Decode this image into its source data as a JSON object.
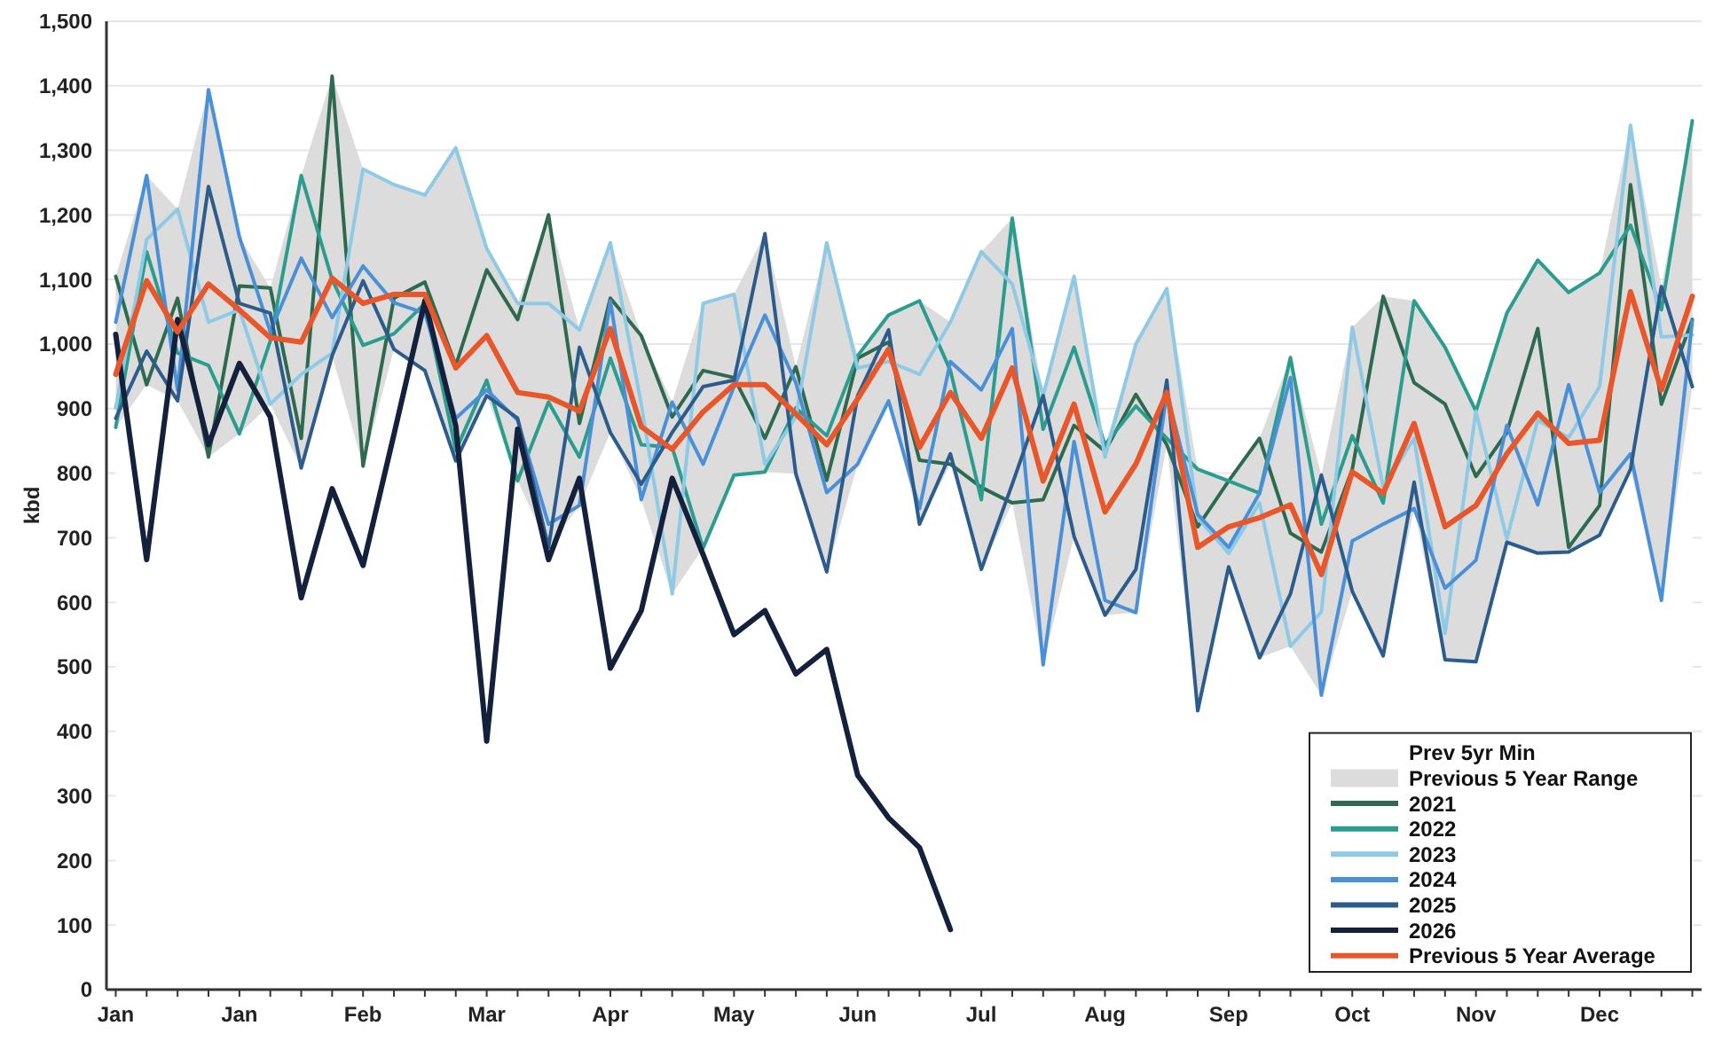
{
  "chart_data": {
    "type": "line",
    "ylabel": "kbd",
    "categories": [
      "Jan",
      null,
      null,
      null,
      "Jan",
      null,
      null,
      null,
      "Feb",
      null,
      null,
      null,
      "Mar",
      null,
      null,
      null,
      "Apr",
      null,
      null,
      null,
      "May",
      null,
      null,
      null,
      "Jun",
      null,
      null,
      null,
      "Jul",
      null,
      null,
      null,
      "Aug",
      null,
      null,
      null,
      "Sep",
      null,
      null,
      null,
      "Oct",
      null,
      null,
      null,
      "Nov",
      null,
      null,
      null,
      "Dec",
      null,
      null,
      null
    ],
    "ylim": [
      0,
      1500
    ],
    "yticks": [
      0,
      {
        "value": 100,
        "label": "100"
      },
      200,
      300,
      400,
      500,
      600,
      700,
      800,
      900,
      {
        "value": 1000,
        "label": "1,000"
      },
      {
        "value": 1100,
        "label": "1,100"
      },
      {
        "value": 1200,
        "label": "1,200"
      },
      {
        "value": 1300,
        "label": "1,300"
      },
      {
        "value": 1400,
        "label": "1,400"
      },
      {
        "value": 1500,
        "label": "1,500"
      }
    ],
    "grid": "y",
    "stacked": true,
    "legend": "bottom right",
    "marker": "none",
    "line_style": "solid",
    "series": [
      {
        "name": "Prev 5yr Min",
        "type": "area",
        "color": "#ffffff",
        "values": [
          871,
          937,
          912,
          825,
          861,
          907,
          808,
          982,
          811,
          992,
          959,
          819,
          920,
          788,
          685,
          750,
          863,
          759,
          613,
          684,
          797,
          802,
          799,
          647,
          814,
          912,
          721,
          814,
          651,
          754,
          503,
          702,
          580,
          584,
          844,
          432,
          655,
          514,
          532,
          456,
          617,
          517,
          745,
          511,
          508,
          693,
          676,
          678,
          704,
          806,
          603,
          934
        ]
      },
      {
        "name": "Previous 5 Year Range",
        "type": "area",
        "color": "#dcdcdc",
        "values": [
          234,
          324,
          297,
          569,
          305,
          180,
          453,
          433,
          460,
          255,
          272,
          485,
          228,
          275,
          515,
          272,
          294,
          254,
          297,
          379,
          280,
          369,
          166,
          510,
          168,
          133,
          346,
          220,
          492,
          441,
          417,
          403,
          264,
          416,
          242,
          374,
          133,
          340,
          447,
          341,
          409,
          557,
          322,
          484,
          388,
          355,
          454,
          402,
          406,
          533,
          486,
          412
        ]
      },
      {
        "name": "2021",
        "color": "#2d6a4f",
        "values": [
          1105,
          937,
          1071,
          825,
          1090,
          1087,
          854,
          1415,
          811,
          1071,
          1096,
          967,
          1115,
          1038,
          1200,
          877,
          1071,
          1013,
          887,
          959,
          948,
          854,
          965,
          789,
          978,
          1003,
          820,
          814,
          778,
          754,
          759,
          874,
          834,
          922,
          844,
          717,
          788,
          854,
          707,
          678,
          806,
          1074,
          940,
          907,
          795,
          863,
          1024,
          685,
          750,
          1247,
          907,
          1038
        ]
      },
      {
        "name": "2022",
        "color": "#2a9d8f",
        "values": [
          871,
          1143,
          986,
          967,
          861,
          1005,
          1261,
          1100,
          998,
          1016,
          1063,
          835,
          944,
          788,
          910,
          825,
          978,
          844,
          840,
          684,
          797,
          802,
          901,
          858,
          982,
          1045,
          1067,
          959,
          759,
          1195,
          868,
          995,
          844,
          904,
          854,
          806,
          788,
          769,
          979,
          721,
          858,
          754,
          1067,
          995,
          896,
          1048,
          1130,
          1080,
          1110,
          1184,
          1053,
          1346
        ]
      },
      {
        "name": "2023",
        "color": "#8ecae6",
        "values": [
          901,
          1162,
          1209,
          1034,
          1053,
          907,
          953,
          986,
          1271,
          1247,
          1231,
          1304,
          1148,
          1063,
          1063,
          1022,
          1157,
          907,
          613,
          1063,
          1077,
          814,
          887,
          1157,
          963,
          973,
          953,
          1034,
          1143,
          1093,
          920,
          1105,
          825,
          1000,
          1086,
          731,
          676,
          754,
          532,
          585,
          1026,
          778,
          854,
          552,
          896,
          698,
          882,
          855,
          934,
          1339,
          1011,
          1014
        ]
      },
      {
        "name": "2024",
        "color": "#4a90d9",
        "values": [
          1034,
          1261,
          929,
          1394,
          1166,
          1019,
          1133,
          1041,
          1121,
          1064,
          1048,
          885,
          929,
          882,
          721,
          750,
          1067,
          759,
          910,
          814,
          934,
          1045,
          940,
          770,
          814,
          912,
          745,
          973,
          929,
          1024,
          503,
          849,
          603,
          584,
          925,
          736,
          685,
          769,
          948,
          456,
          695,
          721,
          745,
          622,
          665,
          874,
          751,
          937,
          770,
          830,
          603,
          1036
        ]
      },
      {
        "name": "2025",
        "color": "#2c5c8c",
        "values": [
          885,
          989,
          912,
          1244,
          1063,
          1048,
          808,
          982,
          1098,
          992,
          959,
          819,
          920,
          885,
          685,
          995,
          863,
          783,
          863,
          934,
          944,
          1171,
          799,
          647,
          920,
          1022,
          721,
          830,
          651,
          783,
          920,
          702,
          580,
          651,
          944,
          432,
          655,
          514,
          613,
          797,
          617,
          517,
          786,
          511,
          508,
          693,
          676,
          678,
          704,
          806,
          1089,
          934
        ]
      },
      {
        "name": "2026",
        "color": "#14213d",
        "values": [
          1015,
          666,
          1038,
          844,
          970,
          887,
          607,
          776,
          657,
          860,
          1067,
          873,
          385,
          868,
          666,
          792,
          498,
          587,
          792,
          674,
          550,
          587,
          489,
          527,
          332,
          266,
          220,
          93,
          null,
          null,
          null,
          null,
          null,
          null,
          null,
          null,
          null,
          null,
          null,
          null,
          null,
          null,
          null,
          null,
          null,
          null,
          null,
          null,
          null,
          null,
          null,
          null
        ]
      },
      {
        "name": "Previous 5 Year Average",
        "color": "#e8562a",
        "values": [
          953,
          1098,
          1019,
          1093,
          1053,
          1010,
          1003,
          1102,
          1063,
          1077,
          1077,
          963,
          1013,
          925,
          918,
          896,
          1024,
          872,
          837,
          895,
          937,
          937,
          892,
          844,
          915,
          992,
          840,
          925,
          854,
          963,
          788,
          907,
          740,
          814,
          925,
          685,
          717,
          731,
          751,
          643,
          802,
          769,
          877,
          717,
          750,
          830,
          893,
          846,
          851,
          1081,
          929,
          1074
        ]
      }
    ]
  }
}
